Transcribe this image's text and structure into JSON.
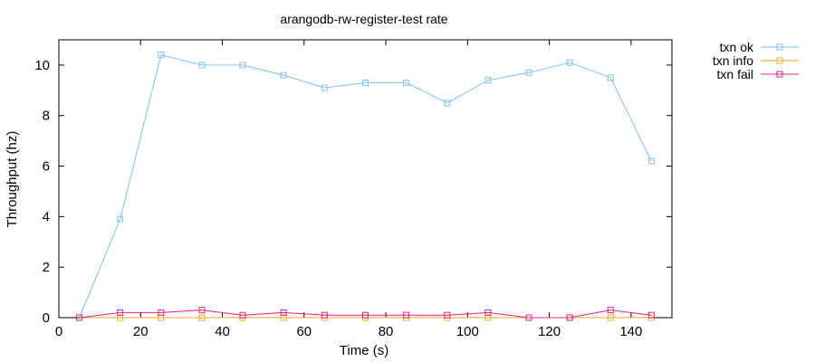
{
  "chart_data": {
    "type": "line",
    "title": "arangodb-rw-register-test rate",
    "xlabel": "Time (s)",
    "ylabel": "Throughput (hz)",
    "xlim": [
      0,
      150
    ],
    "ylim": [
      0,
      11
    ],
    "xticks": [
      0,
      20,
      40,
      60,
      80,
      100,
      120,
      140
    ],
    "yticks": [
      0,
      2,
      4,
      6,
      8,
      10
    ],
    "grid": false,
    "legend_position": "outside-top-right",
    "series": [
      {
        "name": "txn ok",
        "color": "#7fbfee",
        "marker": "open-square",
        "x": [
          5,
          15,
          25,
          35,
          45,
          55,
          65,
          75,
          85,
          95,
          105,
          115,
          125,
          135,
          145
        ],
        "y": [
          0,
          3.9,
          10.4,
          10.0,
          10.0,
          9.6,
          9.1,
          9.3,
          9.3,
          8.5,
          9.4,
          9.7,
          10.1,
          9.5,
          6.2
        ]
      },
      {
        "name": "txn info",
        "color": "#f5a623",
        "marker": "open-square",
        "x": [
          5,
          15,
          25,
          35,
          45,
          55,
          65,
          75,
          85,
          95,
          105,
          115,
          125,
          135,
          145
        ],
        "y": [
          0,
          0,
          0,
          0,
          0,
          0,
          0,
          0,
          0,
          0,
          0,
          0,
          0,
          0,
          0
        ]
      },
      {
        "name": "txn fail",
        "color": "#d6267e",
        "marker": "open-square",
        "x": [
          5,
          15,
          25,
          35,
          45,
          55,
          65,
          75,
          85,
          95,
          105,
          115,
          125,
          135,
          145
        ],
        "y": [
          0,
          0.2,
          0.2,
          0.3,
          0.1,
          0.2,
          0.1,
          0.1,
          0.1,
          0.1,
          0.2,
          0,
          0,
          0.3,
          0.1
        ]
      }
    ]
  }
}
